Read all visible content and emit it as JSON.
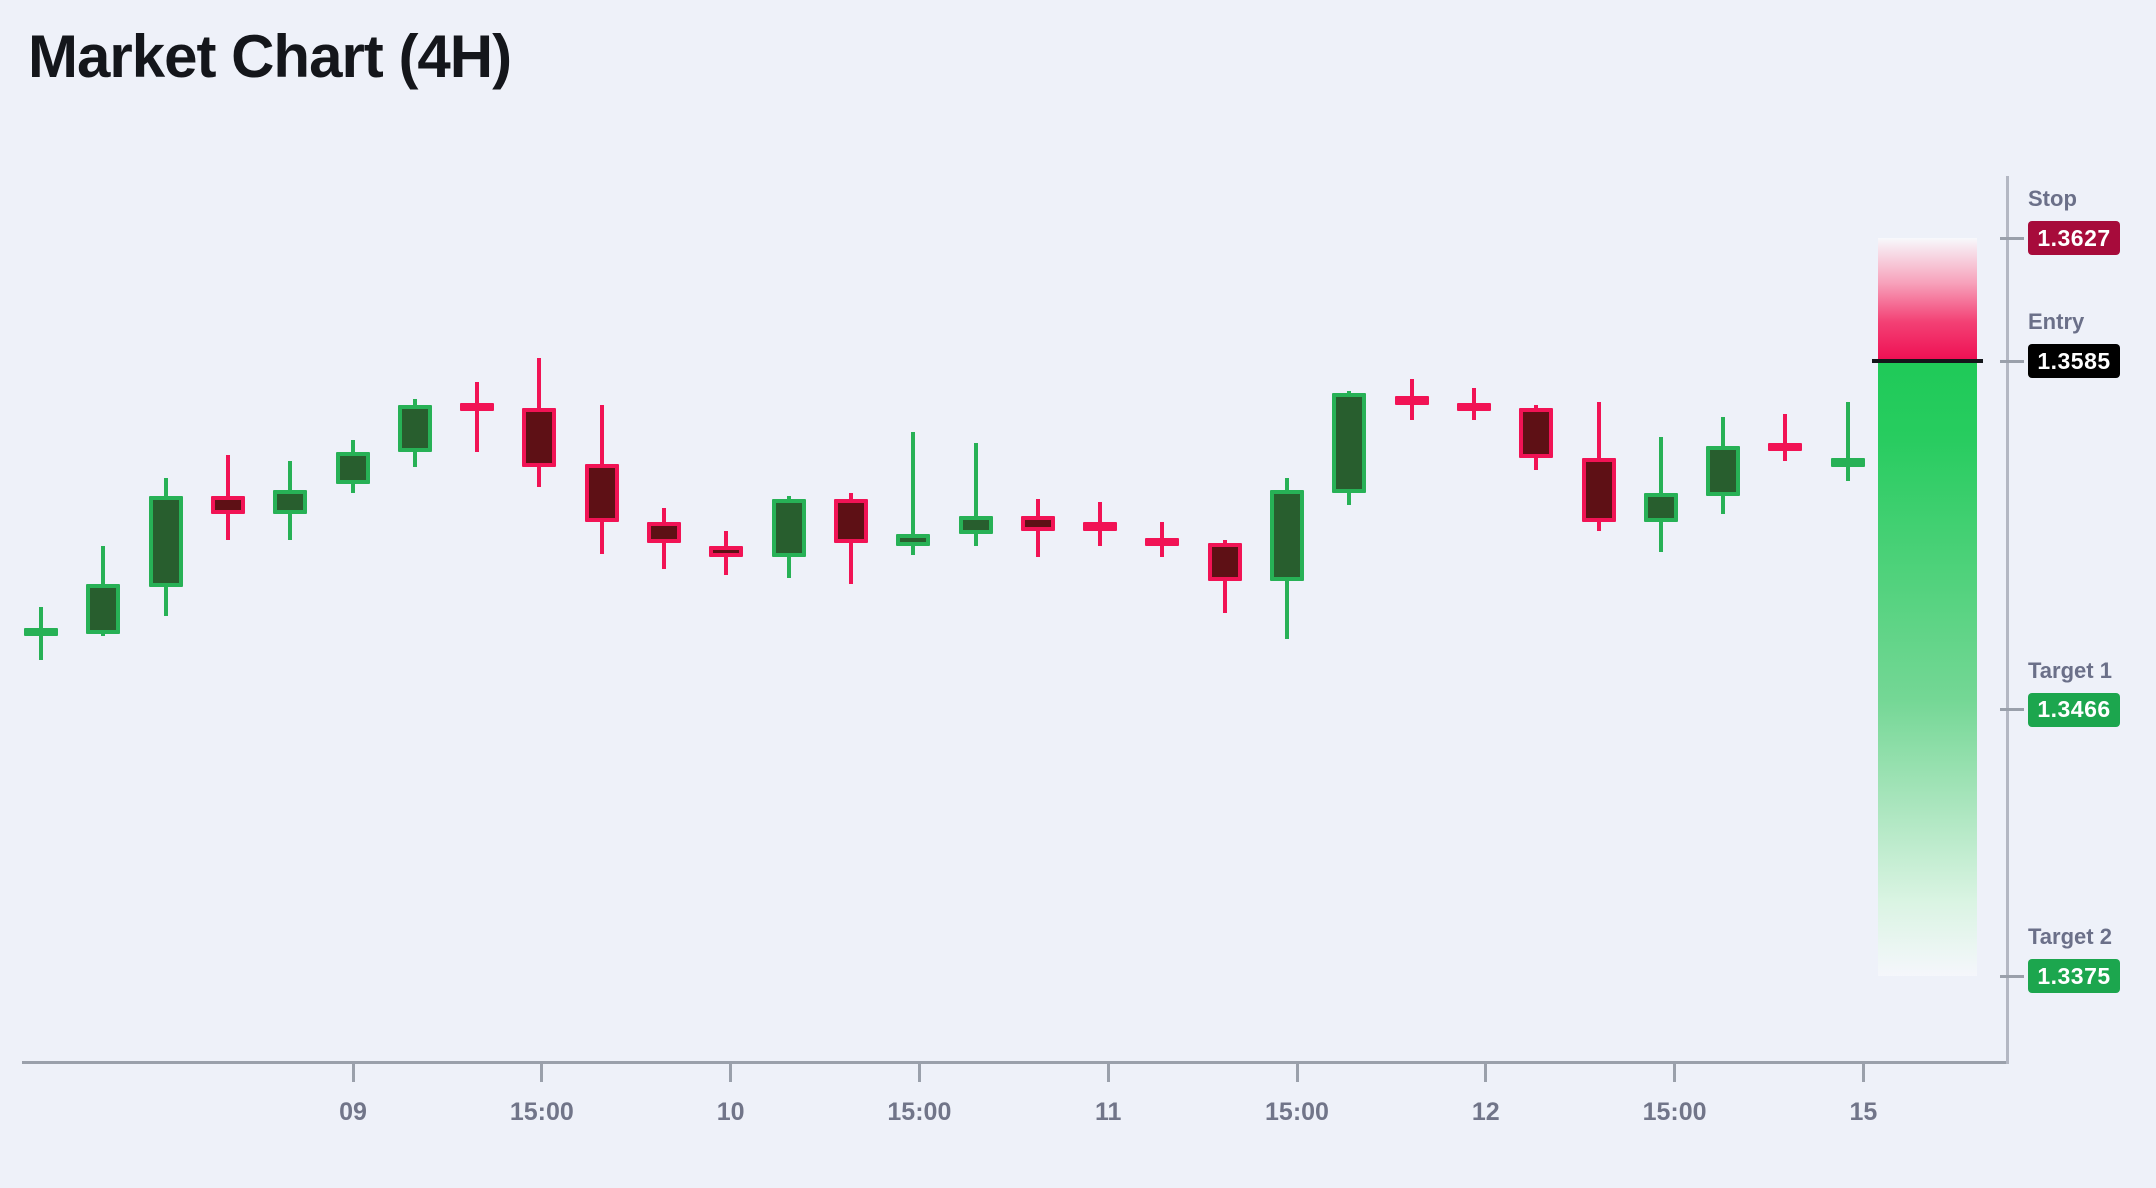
{
  "title": "Market Chart (4H)",
  "chart_data": {
    "type": "candlestick",
    "title": "Market Chart (4H)",
    "timeframe": "4H",
    "ylim": [
      1.3346,
      1.3664
    ],
    "grid": false,
    "legend": "none",
    "x_axis": {
      "tick_labels": [
        "09",
        "15:00",
        "10",
        "15:00",
        "11",
        "15:00",
        "12",
        "15:00",
        "15"
      ]
    },
    "candles": [
      {
        "o": 1.3491,
        "h": 1.3501,
        "l": 1.3483,
        "c": 1.3494,
        "dir": "up"
      },
      {
        "o": 1.3492,
        "h": 1.3522,
        "l": 1.3491,
        "c": 1.3509,
        "dir": "up"
      },
      {
        "o": 1.3508,
        "h": 1.3545,
        "l": 1.3498,
        "c": 1.3539,
        "dir": "up"
      },
      {
        "o": 1.3539,
        "h": 1.3553,
        "l": 1.3524,
        "c": 1.3533,
        "dir": "down"
      },
      {
        "o": 1.3533,
        "h": 1.3551,
        "l": 1.3524,
        "c": 1.3541,
        "dir": "up"
      },
      {
        "o": 1.3543,
        "h": 1.3558,
        "l": 1.354,
        "c": 1.3554,
        "dir": "up"
      },
      {
        "o": 1.3554,
        "h": 1.3572,
        "l": 1.3549,
        "c": 1.357,
        "dir": "up"
      },
      {
        "o": 1.357,
        "h": 1.3578,
        "l": 1.3554,
        "c": 1.3569,
        "dir": "down"
      },
      {
        "o": 1.3569,
        "h": 1.3586,
        "l": 1.3542,
        "c": 1.3549,
        "dir": "down"
      },
      {
        "o": 1.355,
        "h": 1.357,
        "l": 1.3519,
        "c": 1.353,
        "dir": "down"
      },
      {
        "o": 1.353,
        "h": 1.3535,
        "l": 1.3514,
        "c": 1.3523,
        "dir": "down"
      },
      {
        "o": 1.3522,
        "h": 1.3527,
        "l": 1.3512,
        "c": 1.3518,
        "dir": "down"
      },
      {
        "o": 1.3518,
        "h": 1.3539,
        "l": 1.3511,
        "c": 1.3538,
        "dir": "up"
      },
      {
        "o": 1.3538,
        "h": 1.354,
        "l": 1.3509,
        "c": 1.3523,
        "dir": "down"
      },
      {
        "o": 1.3522,
        "h": 1.3561,
        "l": 1.3519,
        "c": 1.3526,
        "dir": "up"
      },
      {
        "o": 1.3526,
        "h": 1.3557,
        "l": 1.3522,
        "c": 1.3532,
        "dir": "up"
      },
      {
        "o": 1.3532,
        "h": 1.3538,
        "l": 1.3518,
        "c": 1.3527,
        "dir": "down"
      },
      {
        "o": 1.353,
        "h": 1.3537,
        "l": 1.3522,
        "c": 1.3527,
        "dir": "down"
      },
      {
        "o": 1.3524,
        "h": 1.353,
        "l": 1.3518,
        "c": 1.3523,
        "dir": "down"
      },
      {
        "o": 1.3523,
        "h": 1.3524,
        "l": 1.3499,
        "c": 1.351,
        "dir": "down"
      },
      {
        "o": 1.351,
        "h": 1.3545,
        "l": 1.349,
        "c": 1.3541,
        "dir": "up"
      },
      {
        "o": 1.354,
        "h": 1.3575,
        "l": 1.3536,
        "c": 1.3574,
        "dir": "up"
      },
      {
        "o": 1.3573,
        "h": 1.3579,
        "l": 1.3565,
        "c": 1.357,
        "dir": "down"
      },
      {
        "o": 1.357,
        "h": 1.3576,
        "l": 1.3565,
        "c": 1.3569,
        "dir": "down"
      },
      {
        "o": 1.3569,
        "h": 1.357,
        "l": 1.3548,
        "c": 1.3552,
        "dir": "down"
      },
      {
        "o": 1.3552,
        "h": 1.3571,
        "l": 1.3527,
        "c": 1.353,
        "dir": "down"
      },
      {
        "o": 1.353,
        "h": 1.3559,
        "l": 1.352,
        "c": 1.354,
        "dir": "up"
      },
      {
        "o": 1.3539,
        "h": 1.3566,
        "l": 1.3533,
        "c": 1.3556,
        "dir": "up"
      },
      {
        "o": 1.3557,
        "h": 1.3567,
        "l": 1.3551,
        "c": 1.3555,
        "dir": "down"
      },
      {
        "o": 1.3549,
        "h": 1.3571,
        "l": 1.3544,
        "c": 1.3552,
        "dir": "up"
      }
    ],
    "levels": [
      {
        "id": "stop",
        "label": "Stop",
        "value": "1.3627",
        "price": 1.3627,
        "badge_color": "#a70b3b",
        "text_color": "#ffffff"
      },
      {
        "id": "entry",
        "label": "Entry",
        "value": "1.3585",
        "price": 1.3585,
        "badge_color": "#000000",
        "text_color": "#ffffff"
      },
      {
        "id": "target-1",
        "label": "Target 1",
        "value": "1.3466",
        "price": 1.3466,
        "badge_color": "#1ca64e",
        "text_color": "#ffffff"
      },
      {
        "id": "target-2",
        "label": "Target 2",
        "value": "1.3375",
        "price": 1.3375,
        "badge_color": "#1ca64e",
        "text_color": "#ffffff"
      }
    ],
    "zones": [
      {
        "id": "risk",
        "kind": "risk",
        "from": 1.3627,
        "to": 1.3585
      },
      {
        "id": "reward",
        "kind": "reward",
        "from": 1.3585,
        "to": 1.3375
      }
    ],
    "entry_line_price": 1.3585,
    "colors": {
      "background": "#eef1f9",
      "bull_body": "#285e2e",
      "bull_edge": "#27b156",
      "bear_body": "#5e1015",
      "bear_edge": "#f11355",
      "risk_gradient_bottom": "#ef0e52",
      "reward_gradient_top": "#1fca58",
      "axis": "#9aa0ab",
      "axis_vertical": "#b3b7c3",
      "tick_label": "#717589",
      "level_label": "#6b7089",
      "entry_line": "#14161a"
    }
  }
}
